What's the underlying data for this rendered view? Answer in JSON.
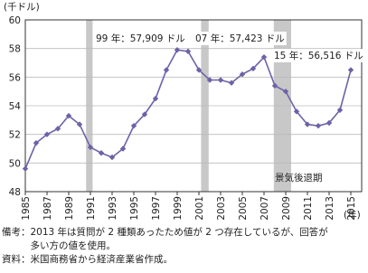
{
  "chart_data": {
    "type": "line",
    "y_unit_label": "(千ドル)",
    "x_unit_label": "(年)",
    "x": [
      1985,
      1986,
      1987,
      1988,
      1989,
      1990,
      1991,
      1992,
      1993,
      1994,
      1995,
      1996,
      1997,
      1998,
      1999,
      2000,
      2001,
      2002,
      2003,
      2004,
      2005,
      2006,
      2007,
      2008,
      2009,
      2010,
      2011,
      2012,
      2013,
      2014,
      2015
    ],
    "series": [
      {
        "color": "#6e62a8",
        "values": [
          49.6,
          51.4,
          52.0,
          52.4,
          53.3,
          52.7,
          51.1,
          50.7,
          50.4,
          51.0,
          52.6,
          53.4,
          54.5,
          56.5,
          57.9,
          57.8,
          56.5,
          55.8,
          55.8,
          55.6,
          56.2,
          56.6,
          57.4,
          55.4,
          55.0,
          53.6,
          52.7,
          52.6,
          52.8,
          53.7,
          56.5
        ]
      }
    ],
    "recessions": [
      [
        1990.6,
        1991.2
      ],
      [
        2001.2,
        2001.9
      ],
      [
        2007.9,
        2009.5
      ]
    ],
    "recession_label": "景気後退期",
    "annotations": [
      "99 年：57,909 ドル",
      "07 年：57,423 ドル",
      "15 年：56,516 ドル"
    ],
    "xlim": [
      1985,
      2016
    ],
    "ylim": [
      48,
      60
    ],
    "xticks": [
      1985,
      1987,
      1989,
      1991,
      1993,
      1995,
      1997,
      1999,
      2001,
      2003,
      2005,
      2007,
      2009,
      2011,
      2013,
      2015
    ],
    "yticks": [
      48,
      50,
      52,
      54,
      56,
      58,
      60
    ],
    "grid": true
  },
  "notes": [
    "備考：2013 年は質問が 2 種類あったため値が 2 つ存在しているが、回答が",
    "　　　多い方の値を使用。",
    "資料：米国商務省から経済産業省作成。"
  ]
}
